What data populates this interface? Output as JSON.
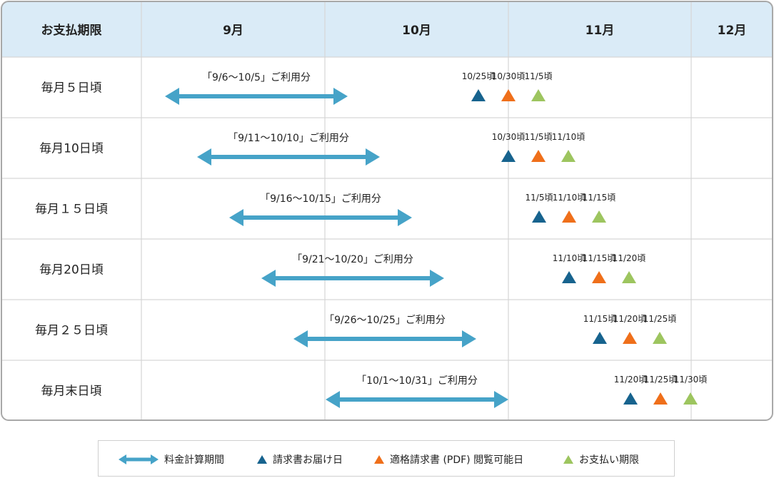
{
  "table": {
    "corner_header": "お支払期限",
    "months": [
      "9月",
      "10月",
      "11月",
      "12月"
    ],
    "rows": [
      {
        "label": "毎月５日頃",
        "period": "「9/6～10/5」ご利用分",
        "markers": [
          {
            "kind": "invoice",
            "date": "10/25頃"
          },
          {
            "kind": "pdf",
            "date": "10/30頃"
          },
          {
            "kind": "payment",
            "date": "11/5頃"
          }
        ]
      },
      {
        "label": "毎月10日頃",
        "period": "「9/11～10/10」ご利用分",
        "markers": [
          {
            "kind": "invoice",
            "date": "10/30頃"
          },
          {
            "kind": "pdf",
            "date": "11/5頃"
          },
          {
            "kind": "payment",
            "date": "11/10頃"
          }
        ]
      },
      {
        "label": "毎月１５日頃",
        "period": "「9/16～10/15」ご利用分",
        "markers": [
          {
            "kind": "invoice",
            "date": "11/5頃"
          },
          {
            "kind": "pdf",
            "date": "11/10頃"
          },
          {
            "kind": "payment",
            "date": "11/15頃"
          }
        ]
      },
      {
        "label": "毎月20日頃",
        "period": "「9/21～10/20」ご利用分",
        "markers": [
          {
            "kind": "invoice",
            "date": "11/10頃"
          },
          {
            "kind": "pdf",
            "date": "11/15頃"
          },
          {
            "kind": "payment",
            "date": "11/20頃"
          }
        ]
      },
      {
        "label": "毎月２５日頃",
        "period": "「9/26～10/25」ご利用分",
        "markers": [
          {
            "kind": "invoice",
            "date": "11/15頃"
          },
          {
            "kind": "pdf",
            "date": "11/20頃"
          },
          {
            "kind": "payment",
            "date": "11/25頃"
          }
        ]
      },
      {
        "label": "毎月末日頃",
        "period": "「10/1～10/31」ご利用分",
        "markers": [
          {
            "kind": "invoice",
            "date": "11/20頃"
          },
          {
            "kind": "pdf",
            "date": "11/25頃"
          },
          {
            "kind": "payment",
            "date": "11/30頃"
          }
        ]
      }
    ]
  },
  "legend": {
    "billing_period": "料金計算期間",
    "invoice_delivery": "請求書お届け日",
    "pdf_available": "適格請求書 (PDF) 閲覧可能日",
    "payment_due": "お支払い期限"
  },
  "colors": {
    "arrow": "#46a3c8",
    "invoice": "#17638e",
    "pdf": "#ef6f1a",
    "payment": "#9dc55f",
    "header_bg": "#daebf7",
    "border": "#a8a8a8",
    "grid": "#d6d6d6"
  }
}
